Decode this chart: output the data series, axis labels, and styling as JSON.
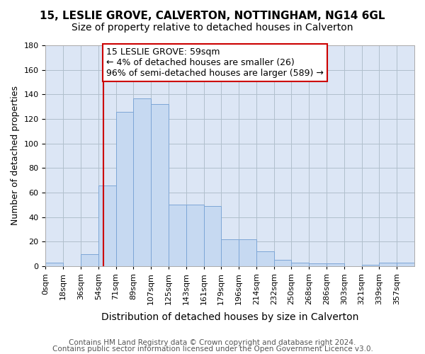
{
  "title": "15, LESLIE GROVE, CALVERTON, NOTTINGHAM, NG14 6GL",
  "subtitle": "Size of property relative to detached houses in Calverton",
  "xlabel": "Distribution of detached houses by size in Calverton",
  "ylabel": "Number of detached properties",
  "footnote1": "Contains HM Land Registry data © Crown copyright and database right 2024.",
  "footnote2": "Contains public sector information licensed under the Open Government Licence v3.0.",
  "bin_labels": [
    "0sqm",
    "18sqm",
    "36sqm",
    "54sqm",
    "71sqm",
    "89sqm",
    "107sqm",
    "125sqm",
    "143sqm",
    "161sqm",
    "179sqm",
    "196sqm",
    "214sqm",
    "232sqm",
    "250sqm",
    "268sqm",
    "286sqm",
    "303sqm",
    "321sqm",
    "339sqm",
    "357sqm"
  ],
  "bar_values": [
    3,
    0,
    10,
    66,
    126,
    137,
    132,
    50,
    50,
    49,
    22,
    22,
    12,
    5,
    3,
    2,
    2,
    0,
    1,
    3,
    3
  ],
  "bar_color": "#c6d9f1",
  "bar_edgecolor": "#7da6d6",
  "marker_color": "#cc0000",
  "annotation_text": "15 LESLIE GROVE: 59sqm\n← 4% of detached houses are smaller (26)\n96% of semi-detached houses are larger (589) →",
  "annotation_box_edgecolor": "#cc0000",
  "annotation_box_facecolor": "#ffffff",
  "ylim": [
    0,
    180
  ],
  "yticks": [
    0,
    20,
    40,
    60,
    80,
    100,
    120,
    140,
    160,
    180
  ],
  "title_fontsize": 11,
  "subtitle_fontsize": 10,
  "xlabel_fontsize": 10,
  "ylabel_fontsize": 9,
  "tick_fontsize": 8,
  "annot_fontsize": 9,
  "footnote_fontsize": 7.5
}
